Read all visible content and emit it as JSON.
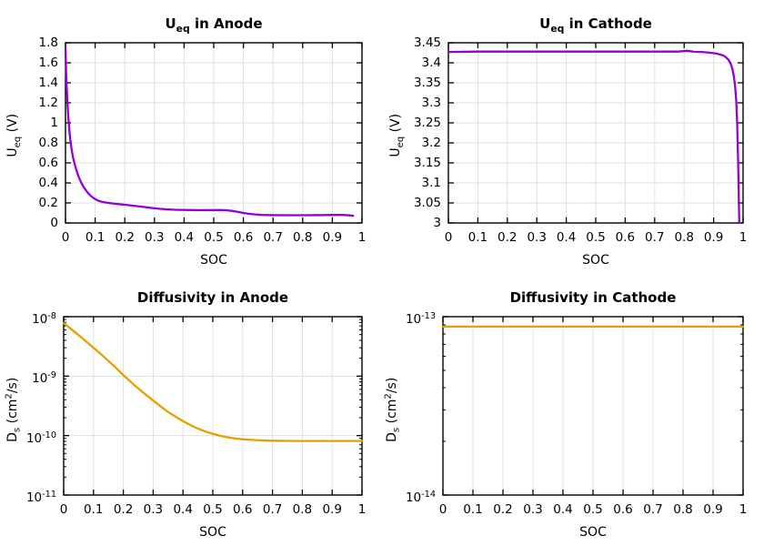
{
  "figure": {
    "background": "#ffffff",
    "colors": {
      "ocv_line": "#9400d3",
      "diffusivity_line": "#e69f00",
      "grid": "#e0e0e0",
      "axis": "#000000",
      "text": "#000000"
    }
  },
  "chart_data": [
    {
      "id": "ueq_anode",
      "type": "line",
      "title_parts": [
        [
          "U",
          ""
        ],
        [
          "eq",
          "sub"
        ],
        [
          " in Anode",
          ""
        ]
      ],
      "xlabel": "SOC",
      "ylabel_parts": [
        [
          "U",
          ""
        ],
        [
          "eq",
          "sub"
        ],
        [
          " (V)",
          ""
        ]
      ],
      "xscale": "linear",
      "yscale": "linear",
      "xlim": [
        0,
        1
      ],
      "ylim": [
        0,
        1.8
      ],
      "xtick_vals": [
        0,
        0.1,
        0.2,
        0.3,
        0.4,
        0.5,
        0.6,
        0.7,
        0.8,
        0.9,
        1
      ],
      "xtick_labels": [
        "0",
        "0.1",
        "0.2",
        "0.3",
        "0.4",
        "0.5",
        "0.6",
        "0.7",
        "0.8",
        "0.9",
        "1"
      ],
      "ytick_vals": [
        0,
        0.2,
        0.4,
        0.6,
        0.8,
        1,
        1.2,
        1.4,
        1.6,
        1.8
      ],
      "ytick_labels": [
        "0",
        "0.2",
        "0.4",
        "0.6",
        "0.8",
        "1",
        "1.2",
        "1.4",
        "1.6",
        "1.8"
      ],
      "grid": true,
      "line_color": "#9400d3",
      "points": [
        [
          0,
          1.75
        ],
        [
          0.002,
          1.52
        ],
        [
          0.004,
          1.36
        ],
        [
          0.006,
          1.24
        ],
        [
          0.008,
          1.13
        ],
        [
          0.01,
          1.04
        ],
        [
          0.013,
          0.93
        ],
        [
          0.016,
          0.84
        ],
        [
          0.02,
          0.75
        ],
        [
          0.025,
          0.66
        ],
        [
          0.03,
          0.6
        ],
        [
          0.035,
          0.545
        ],
        [
          0.04,
          0.497
        ],
        [
          0.045,
          0.457
        ],
        [
          0.05,
          0.422
        ],
        [
          0.055,
          0.392
        ],
        [
          0.06,
          0.366
        ],
        [
          0.065,
          0.343
        ],
        [
          0.07,
          0.322
        ],
        [
          0.075,
          0.303
        ],
        [
          0.08,
          0.287
        ],
        [
          0.085,
          0.272
        ],
        [
          0.09,
          0.259
        ],
        [
          0.095,
          0.248
        ],
        [
          0.1,
          0.238
        ],
        [
          0.11,
          0.224
        ],
        [
          0.12,
          0.214
        ],
        [
          0.13,
          0.207
        ],
        [
          0.14,
          0.202
        ],
        [
          0.15,
          0.198
        ],
        [
          0.16,
          0.194
        ],
        [
          0.18,
          0.188
        ],
        [
          0.2,
          0.182
        ],
        [
          0.22,
          0.175
        ],
        [
          0.24,
          0.168
        ],
        [
          0.26,
          0.161
        ],
        [
          0.28,
          0.154
        ],
        [
          0.3,
          0.147
        ],
        [
          0.32,
          0.141
        ],
        [
          0.34,
          0.136
        ],
        [
          0.36,
          0.133
        ],
        [
          0.38,
          0.131
        ],
        [
          0.4,
          0.13
        ],
        [
          0.44,
          0.128
        ],
        [
          0.48,
          0.128
        ],
        [
          0.52,
          0.129
        ],
        [
          0.54,
          0.127
        ],
        [
          0.56,
          0.121
        ],
        [
          0.58,
          0.111
        ],
        [
          0.6,
          0.1
        ],
        [
          0.62,
          0.091
        ],
        [
          0.64,
          0.085
        ],
        [
          0.66,
          0.081
        ],
        [
          0.68,
          0.079
        ],
        [
          0.7,
          0.078
        ],
        [
          0.75,
          0.077
        ],
        [
          0.8,
          0.077
        ],
        [
          0.85,
          0.078
        ],
        [
          0.9,
          0.08
        ],
        [
          0.93,
          0.08
        ],
        [
          0.95,
          0.078
        ],
        [
          0.97,
          0.072
        ]
      ]
    },
    {
      "id": "ueq_cathode",
      "type": "line",
      "title_parts": [
        [
          "U",
          ""
        ],
        [
          "eq",
          "sub"
        ],
        [
          " in Cathode",
          ""
        ]
      ],
      "xlabel": "SOC",
      "ylabel_parts": [
        [
          "U",
          ""
        ],
        [
          "eq",
          "sub"
        ],
        [
          " (V)",
          ""
        ]
      ],
      "xscale": "linear",
      "yscale": "linear",
      "xlim": [
        0,
        1
      ],
      "ylim": [
        3,
        3.45
      ],
      "xtick_vals": [
        0,
        0.1,
        0.2,
        0.3,
        0.4,
        0.5,
        0.6,
        0.7,
        0.8,
        0.9,
        1
      ],
      "xtick_labels": [
        "0",
        "0.1",
        "0.2",
        "0.3",
        "0.4",
        "0.5",
        "0.6",
        "0.7",
        "0.8",
        "0.9",
        "1"
      ],
      "ytick_vals": [
        3,
        3.05,
        3.1,
        3.15,
        3.2,
        3.25,
        3.3,
        3.35,
        3.4,
        3.45
      ],
      "ytick_labels": [
        "3",
        "3.05",
        "3.1",
        "3.15",
        "3.2",
        "3.25",
        "3.3",
        "3.35",
        "3.4",
        "3.45"
      ],
      "grid": true,
      "line_color": "#9400d3",
      "points": [
        [
          0,
          3.427
        ],
        [
          0.1,
          3.428
        ],
        [
          0.2,
          3.428
        ],
        [
          0.3,
          3.428
        ],
        [
          0.4,
          3.428
        ],
        [
          0.5,
          3.428
        ],
        [
          0.6,
          3.428
        ],
        [
          0.7,
          3.428
        ],
        [
          0.78,
          3.428
        ],
        [
          0.81,
          3.43
        ],
        [
          0.83,
          3.428
        ],
        [
          0.86,
          3.427
        ],
        [
          0.89,
          3.425
        ],
        [
          0.91,
          3.423
        ],
        [
          0.93,
          3.419
        ],
        [
          0.94,
          3.415
        ],
        [
          0.95,
          3.408
        ],
        [
          0.958,
          3.398
        ],
        [
          0.964,
          3.384
        ],
        [
          0.969,
          3.365
        ],
        [
          0.973,
          3.341
        ],
        [
          0.977,
          3.303
        ],
        [
          0.98,
          3.247
        ],
        [
          0.983,
          3.16
        ],
        [
          0.985,
          3.08
        ],
        [
          0.987,
          3.0
        ]
      ]
    },
    {
      "id": "diff_anode",
      "type": "line",
      "title_parts": [
        [
          "Diffusivity in Anode",
          ""
        ]
      ],
      "xlabel": "SOC",
      "ylabel_parts": [
        [
          "D",
          ""
        ],
        [
          "s",
          "sub"
        ],
        [
          " (cm",
          ""
        ],
        [
          "2",
          "sup"
        ],
        [
          "/s)",
          ""
        ]
      ],
      "xscale": "linear",
      "yscale": "log",
      "xlim": [
        0,
        1
      ],
      "ylim": [
        1e-11,
        1e-08
      ],
      "xtick_vals": [
        0,
        0.1,
        0.2,
        0.3,
        0.4,
        0.5,
        0.6,
        0.7,
        0.8,
        0.9,
        1
      ],
      "xtick_labels": [
        "0",
        "0.1",
        "0.2",
        "0.3",
        "0.4",
        "0.5",
        "0.6",
        "0.7",
        "0.8",
        "0.9",
        "1"
      ],
      "ytick_vals": [
        1e-11,
        1e-10,
        1e-09,
        1e-08
      ],
      "ytick_labels": [
        [
          [
            "10",
            ""
          ],
          [
            "-11",
            "sup"
          ]
        ],
        [
          [
            "10",
            ""
          ],
          [
            "-10",
            "sup"
          ]
        ],
        [
          [
            "10",
            ""
          ],
          [
            "-9",
            "sup"
          ]
        ],
        [
          [
            "10",
            ""
          ],
          [
            "-8",
            "sup"
          ]
        ]
      ],
      "grid": true,
      "line_color": "#e69f00",
      "points": [
        [
          0,
          7.8e-09
        ],
        [
          0.025,
          6.2e-09
        ],
        [
          0.05,
          4.9e-09
        ],
        [
          0.075,
          3.85e-09
        ],
        [
          0.1,
          3e-09
        ],
        [
          0.125,
          2.35e-09
        ],
        [
          0.15,
          1.8e-09
        ],
        [
          0.175,
          1.38e-09
        ],
        [
          0.2,
          1.04e-09
        ],
        [
          0.225,
          8e-10
        ],
        [
          0.25,
          6.2e-10
        ],
        [
          0.275,
          4.9e-10
        ],
        [
          0.3,
          3.9e-10
        ],
        [
          0.325,
          3.1e-10
        ],
        [
          0.35,
          2.5e-10
        ],
        [
          0.375,
          2.08e-10
        ],
        [
          0.4,
          1.75e-10
        ],
        [
          0.425,
          1.5e-10
        ],
        [
          0.45,
          1.31e-10
        ],
        [
          0.475,
          1.17e-10
        ],
        [
          0.5,
          1.07e-10
        ],
        [
          0.525,
          9.9e-11
        ],
        [
          0.55,
          9.35e-11
        ],
        [
          0.575,
          8.95e-11
        ],
        [
          0.6,
          8.65e-11
        ],
        [
          0.65,
          8.35e-11
        ],
        [
          0.7,
          8.2e-11
        ],
        [
          0.75,
          8.15e-11
        ],
        [
          0.8,
          8.1e-11
        ],
        [
          0.85,
          8.1e-11
        ],
        [
          0.9,
          8.1e-11
        ],
        [
          0.95,
          8.1e-11
        ],
        [
          1,
          8.1e-11
        ]
      ]
    },
    {
      "id": "diff_cathode",
      "type": "line",
      "title_parts": [
        [
          "Diffusivity in Cathode",
          ""
        ]
      ],
      "xlabel": "SOC",
      "ylabel_parts": [
        [
          "D",
          ""
        ],
        [
          "s",
          "sub"
        ],
        [
          " (cm",
          ""
        ],
        [
          "2",
          "sup"
        ],
        [
          "/s)",
          ""
        ]
      ],
      "xscale": "linear",
      "yscale": "log",
      "xlim": [
        0,
        1
      ],
      "ylim": [
        1e-14,
        1e-13
      ],
      "xtick_vals": [
        0,
        0.1,
        0.2,
        0.3,
        0.4,
        0.5,
        0.6,
        0.7,
        0.8,
        0.9,
        1
      ],
      "xtick_labels": [
        "0",
        "0.1",
        "0.2",
        "0.3",
        "0.4",
        "0.5",
        "0.6",
        "0.7",
        "0.8",
        "0.9",
        "1"
      ],
      "ytick_vals": [
        1e-14,
        1e-13
      ],
      "ytick_labels": [
        [
          [
            "10",
            ""
          ],
          [
            "-14",
            "sup"
          ]
        ],
        [
          [
            "10",
            ""
          ],
          [
            "-13",
            "sup"
          ]
        ]
      ],
      "grid": true,
      "line_color": "#e69f00",
      "points": [
        [
          0,
          8.8e-14
        ],
        [
          1,
          8.8e-14
        ]
      ]
    }
  ]
}
